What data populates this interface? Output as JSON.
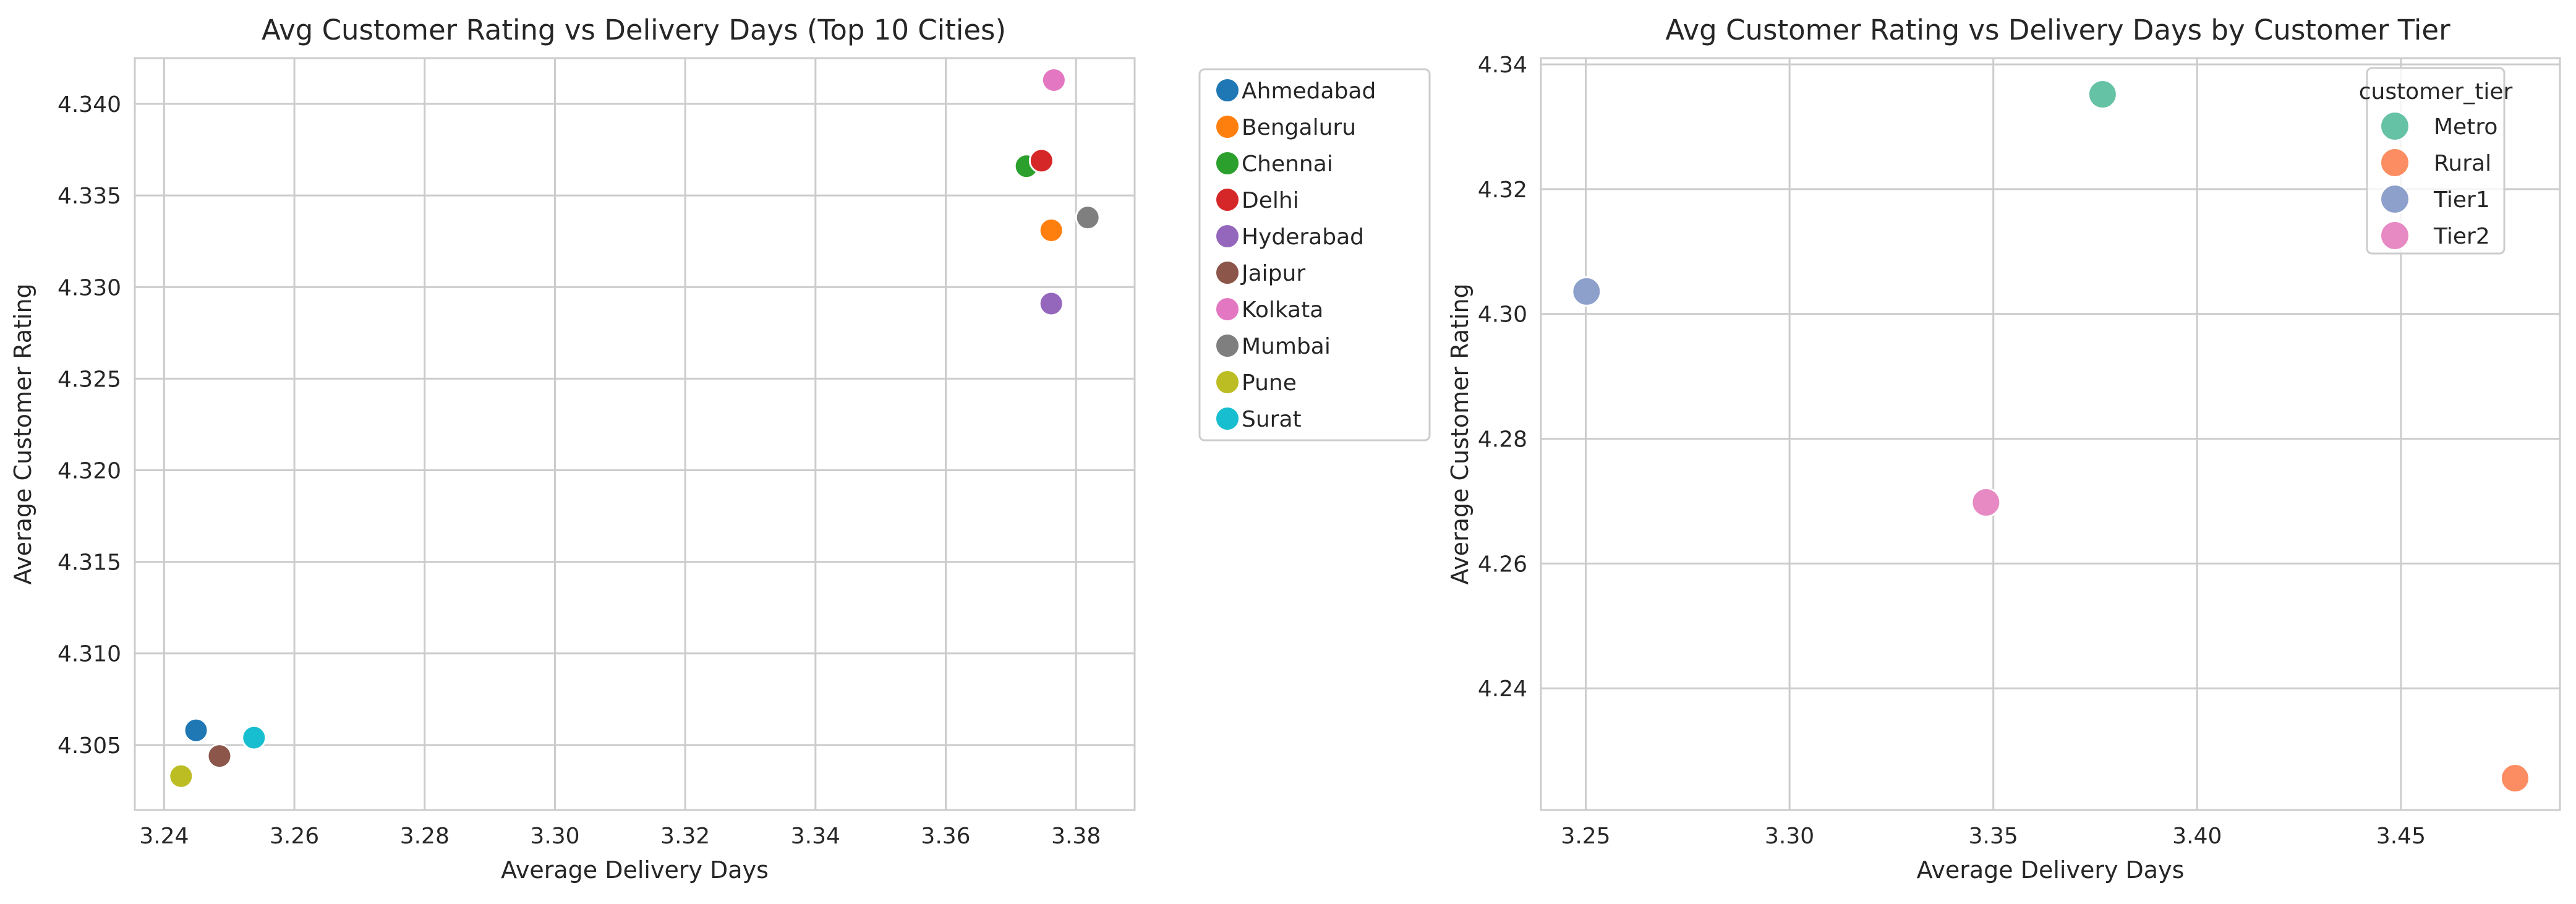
{
  "chart_data": [
    {
      "type": "scatter",
      "title": "Avg Customer Rating vs Delivery Days (Top 10 Cities)",
      "xlabel": "Average Delivery Days",
      "ylabel": "Average Customer Rating",
      "xlim": [
        3.2355,
        3.389
      ],
      "ylim": [
        4.30145,
        4.3425
      ],
      "xticks": [
        3.24,
        3.26,
        3.28,
        3.3,
        3.32,
        3.34,
        3.36,
        3.38
      ],
      "xtick_labels": [
        "3.24",
        "3.26",
        "3.28",
        "3.30",
        "3.32",
        "3.34",
        "3.36",
        "3.38"
      ],
      "yticks": [
        4.305,
        4.31,
        4.315,
        4.32,
        4.325,
        4.33,
        4.335,
        4.34
      ],
      "ytick_labels": [
        "4.305",
        "4.310",
        "4.315",
        "4.320",
        "4.325",
        "4.330",
        "4.335",
        "4.340"
      ],
      "grid": true,
      "legend_position": "outside-right",
      "legend_title": "",
      "series": [
        {
          "name": "Ahmedabad",
          "color": "#1f77b4",
          "x": 3.2449,
          "y": 4.3058
        },
        {
          "name": "Bengaluru",
          "color": "#ff7f0e",
          "x": 3.3762,
          "y": 4.3331
        },
        {
          "name": "Chennai",
          "color": "#2ca02c",
          "x": 3.3724,
          "y": 4.3366
        },
        {
          "name": "Delhi",
          "color": "#d62728",
          "x": 3.3747,
          "y": 4.3369
        },
        {
          "name": "Hyderabad",
          "color": "#9467bd",
          "x": 3.3762,
          "y": 4.3291
        },
        {
          "name": "Jaipur",
          "color": "#8c564b",
          "x": 3.2485,
          "y": 4.3044
        },
        {
          "name": "Kolkata",
          "color": "#e377c2",
          "x": 3.3766,
          "y": 4.3413
        },
        {
          "name": "Mumbai",
          "color": "#7f7f7f",
          "x": 3.3818,
          "y": 4.3338
        },
        {
          "name": "Pune",
          "color": "#bcbd22",
          "x": 3.2426,
          "y": 4.3033
        },
        {
          "name": "Surat",
          "color": "#17becf",
          "x": 3.2538,
          "y": 4.3054
        }
      ]
    },
    {
      "type": "scatter",
      "title": "Avg Customer Rating vs Delivery Days by Customer Tier",
      "xlabel": "Average Delivery Days",
      "ylabel": "Average Customer Rating",
      "xlim": [
        3.239,
        3.489
      ],
      "ylim": [
        4.2205,
        4.341
      ],
      "xticks": [
        3.25,
        3.3,
        3.35,
        3.4,
        3.45
      ],
      "xtick_labels": [
        "3.25",
        "3.30",
        "3.35",
        "3.40",
        "3.45"
      ],
      "yticks": [
        4.24,
        4.26,
        4.28,
        4.3,
        4.32,
        4.34
      ],
      "ytick_labels": [
        "4.24",
        "4.26",
        "4.28",
        "4.30",
        "4.32",
        "4.34"
      ],
      "grid": true,
      "legend_position": "upper-right",
      "legend_title": "customer_tier",
      "series": [
        {
          "name": "Metro",
          "color": "#66c2a5",
          "x": 3.3768,
          "y": 4.3352
        },
        {
          "name": "Rural",
          "color": "#fc8d62",
          "x": 3.478,
          "y": 4.2256
        },
        {
          "name": "Tier1",
          "color": "#8da0cb",
          "x": 3.2502,
          "y": 4.3036
        },
        {
          "name": "Tier2",
          "color": "#e78ac3",
          "x": 3.3482,
          "y": 4.2698
        }
      ]
    }
  ]
}
